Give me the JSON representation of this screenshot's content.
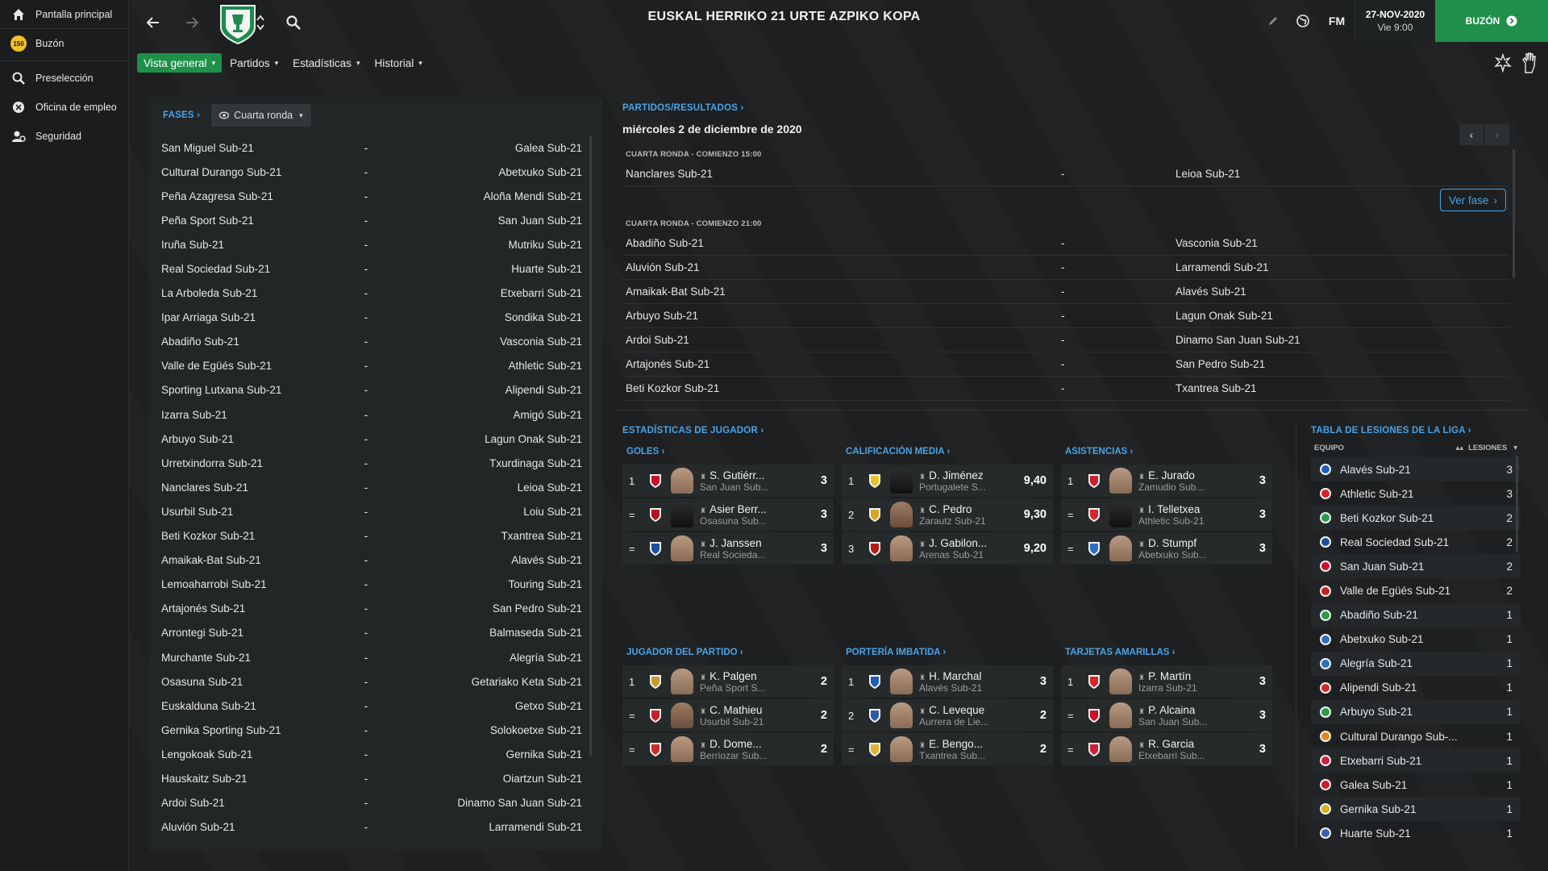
{
  "sidebar": {
    "items": [
      {
        "label": "Pantalla principal",
        "icon": "home-icon"
      },
      {
        "label": "Buzón",
        "icon": "inbox-badge-icon",
        "badge": "150"
      },
      {
        "label": "Preselección",
        "icon": "search-icon"
      },
      {
        "label": "Oficina de empleo",
        "icon": "job-office-icon"
      },
      {
        "label": "Seguridad",
        "icon": "security-icon"
      }
    ]
  },
  "header": {
    "title": "EUSKAL HERRIKO 21 URTE AZPIKO KOPA",
    "fm_label": "FM",
    "date": "27-NOV-2020",
    "day_time": "Vie 9:00",
    "inbox_button": "BUZÓN"
  },
  "tabs": [
    {
      "label": "Vista general",
      "active": true
    },
    {
      "label": "Partidos",
      "active": false
    },
    {
      "label": "Estadísticas",
      "active": false
    },
    {
      "label": "Historial",
      "active": false
    }
  ],
  "fases": {
    "link": "FASES",
    "dropdown": "Cuarta ronda",
    "fixtures": [
      {
        "home": "San Miguel Sub-21",
        "away": "Galea Sub-21"
      },
      {
        "home": "Cultural Durango Sub-21",
        "away": "Abetxuko Sub-21"
      },
      {
        "home": "Peña Azagresa Sub-21",
        "away": "Aloña Mendi Sub-21"
      },
      {
        "home": "Peña Sport  Sub-21",
        "away": "San Juan Sub-21"
      },
      {
        "home": "Iruña Sub-21",
        "away": "Mutriku Sub-21"
      },
      {
        "home": "Real Sociedad Sub-21",
        "away": "Huarte Sub-21"
      },
      {
        "home": "La Arboleda Sub-21",
        "away": "Etxebarri Sub-21"
      },
      {
        "home": "Ipar Arriaga Sub-21",
        "away": "Sondika Sub-21"
      },
      {
        "home": "Abadiño Sub-21",
        "away": "Vasconia Sub-21"
      },
      {
        "home": "Valle de Egüés Sub-21",
        "away": "Athletic Sub-21"
      },
      {
        "home": "Sporting Lutxana Sub-21",
        "away": "Alipendi Sub-21"
      },
      {
        "home": "Izarra Sub-21",
        "away": "Amigó Sub-21"
      },
      {
        "home": "Arbuyo Sub-21",
        "away": "Lagun Onak Sub-21"
      },
      {
        "home": "Urretxindorra Sub-21",
        "away": "Txurdinaga Sub-21"
      },
      {
        "home": "Nanclares Sub-21",
        "away": "Leioa Sub-21"
      },
      {
        "home": "Usurbil Sub-21",
        "away": "Loiu Sub-21"
      },
      {
        "home": "Beti Kozkor Sub-21",
        "away": "Txantrea Sub-21"
      },
      {
        "home": "Amaikak-Bat Sub-21",
        "away": "Alavés Sub-21"
      },
      {
        "home": "Lemoaharrobi Sub-21",
        "away": "Touring Sub-21"
      },
      {
        "home": "Artajonés Sub-21",
        "away": "San Pedro Sub-21"
      },
      {
        "home": "Arrontegi Sub-21",
        "away": "Balmaseda  Sub-21"
      },
      {
        "home": "Murchante  Sub-21",
        "away": "Alegría Sub-21"
      },
      {
        "home": "Osasuna Sub-21",
        "away": "Getariako Keta Sub-21"
      },
      {
        "home": "Euskalduna Sub-21",
        "away": "Getxo Sub-21"
      },
      {
        "home": "Gernika Sporting Sub-21",
        "away": "Solokoetxe Sub-21"
      },
      {
        "home": "Lengokoak Sub-21",
        "away": "Gernika Sub-21"
      },
      {
        "home": "Hauskaitz Sub-21",
        "away": "Oiartzun Sub-21"
      },
      {
        "home": "Ardoi Sub-21",
        "away": "Dinamo San Juan Sub-21"
      },
      {
        "home": "Aluvión Sub-21",
        "away": "Larramendi Sub-21"
      }
    ]
  },
  "matches": {
    "link": "PARTIDOS/RESULTADOS",
    "date": "miércoles 2 de diciembre de 2020",
    "ver_fase": "Ver fase",
    "group1_label": "CUARTA RONDA - COMIENZO 15:00",
    "group1": [
      {
        "home": "Nanclares Sub-21",
        "away": "Leioa Sub-21"
      }
    ],
    "group2_label": "CUARTA RONDA - COMIENZO 21:00",
    "group2": [
      {
        "home": "Abadiño Sub-21",
        "away": "Vasconia Sub-21"
      },
      {
        "home": "Aluvión Sub-21",
        "away": "Larramendi Sub-21"
      },
      {
        "home": "Amaikak-Bat Sub-21",
        "away": "Alavés Sub-21"
      },
      {
        "home": "Arbuyo Sub-21",
        "away": "Lagun Onak Sub-21"
      },
      {
        "home": "Ardoi Sub-21",
        "away": "Dinamo San Juan Sub-21"
      },
      {
        "home": "Artajonés Sub-21",
        "away": "San Pedro Sub-21"
      },
      {
        "home": "Beti Kozkor Sub-21",
        "away": "Txantrea Sub-21"
      }
    ]
  },
  "stats": {
    "link": "ESTADÍSTICAS DE JUGADOR",
    "blocks": [
      {
        "title": "GOLES",
        "rows": [
          {
            "rank": "1",
            "name": "S. Gutiérr...",
            "club": "San Juan Sub...",
            "value": "3",
            "badge": "#c8102e",
            "face": "light"
          },
          {
            "rank": "=",
            "name": "Asier Berr...",
            "club": "Osasuna Sub...",
            "value": "3",
            "badge": "#b5121b",
            "face": "dark"
          },
          {
            "rank": "=",
            "name": "J. Janssen",
            "club": "Real Socieda...",
            "value": "3",
            "badge": "#1c4f9c",
            "face": "light"
          }
        ]
      },
      {
        "title": "CALIFICACIÓN MEDIA",
        "rows": [
          {
            "rank": "1",
            "name": "D. Jiménez",
            "club": "Portugalete S...",
            "value": "9,40",
            "badge": "#e8c22a",
            "face": "dark"
          },
          {
            "rank": "2",
            "name": "C. Pedro",
            "club": "Zarautz Sub-21",
            "value": "9,30",
            "badge": "#d9a520",
            "face": "mid"
          },
          {
            "rank": "3",
            "name": "J. Gabilon...",
            "club": "Arenas Sub-21",
            "value": "9,20",
            "badge": "#b31b1b",
            "face": "light"
          }
        ]
      },
      {
        "title": "ASISTENCIAS",
        "rows": [
          {
            "rank": "1",
            "name": "E. Jurado",
            "club": "Zamudio Sub...",
            "value": "3",
            "badge": "#cc1f2f",
            "face": "light"
          },
          {
            "rank": "=",
            "name": "I. Telletxea",
            "club": "Athletic Sub-21",
            "value": "3",
            "badge": "#d4262b",
            "face": "dark"
          },
          {
            "rank": "=",
            "name": "D. Stumpf",
            "club": "Abetxuko Sub...",
            "value": "3",
            "badge": "#2f6fbf",
            "face": "light"
          }
        ]
      },
      {
        "title": "JUGADOR DEL PARTIDO",
        "rows": [
          {
            "rank": "1",
            "name": "K. Palgen",
            "club": "Peña Sport  S...",
            "value": "2",
            "badge": "#c99a2e",
            "face": "light"
          },
          {
            "rank": "=",
            "name": "C. Mathieu",
            "club": "Usurbil Sub-21",
            "value": "2",
            "badge": "#c8202a",
            "face": "mid"
          },
          {
            "rank": "=",
            "name": "D. Dome...",
            "club": "Berriozar Sub...",
            "value": "2",
            "badge": "#d02a2a",
            "face": "light"
          }
        ]
      },
      {
        "title": "PORTERÍA IMBATIDA",
        "rows": [
          {
            "rank": "1",
            "name": "H. Marchal",
            "club": "Alavés Sub-21",
            "value": "3",
            "badge": "#1d5fbf",
            "face": "light"
          },
          {
            "rank": "2",
            "name": "C. Leveque",
            "club": "Aurrera de Lie...",
            "value": "2",
            "badge": "#2a5ca8",
            "face": "light"
          },
          {
            "rank": "=",
            "name": "E. Bengo...",
            "club": "Txantrea Sub...",
            "value": "2",
            "badge": "#e0b030",
            "face": "light"
          }
        ]
      },
      {
        "title": "TARJETAS AMARILLAS",
        "rows": [
          {
            "rank": "1",
            "name": "P. Martín",
            "club": "Izarra Sub-21",
            "value": "3",
            "badge": "#d4262b",
            "face": "light"
          },
          {
            "rank": "=",
            "name": "P. Alcaina",
            "club": "San Juan Sub...",
            "value": "3",
            "badge": "#c8102e",
            "face": "light"
          },
          {
            "rank": "=",
            "name": "R. Garcia",
            "club": "Etxebarri Sub...",
            "value": "3",
            "badge": "#d0203a",
            "face": "light"
          }
        ]
      }
    ]
  },
  "injuries": {
    "link": "TABLA DE LESIONES DE LA LIGA",
    "col_team": "EQUIPO",
    "col_injuries": "LESIONES",
    "rows": [
      {
        "team": "Alavés Sub-21",
        "count": "3",
        "color": "#1d5fbf"
      },
      {
        "team": "Athletic Sub-21",
        "count": "3",
        "color": "#d4262b"
      },
      {
        "team": "Beti Kozkor Sub-21",
        "count": "2",
        "color": "#2a9a4a"
      },
      {
        "team": "Real Sociedad Sub-21",
        "count": "2",
        "color": "#1c4f9c"
      },
      {
        "team": "San Juan Sub-21",
        "count": "2",
        "color": "#c8102e"
      },
      {
        "team": "Valle de Egüés Sub-21",
        "count": "2",
        "color": "#c42020"
      },
      {
        "team": "Abadiño Sub-21",
        "count": "1",
        "color": "#2a9a4a"
      },
      {
        "team": "Abetxuko Sub-21",
        "count": "1",
        "color": "#2f6fbf"
      },
      {
        "team": "Alegría Sub-21",
        "count": "1",
        "color": "#2f6fbf"
      },
      {
        "team": "Alipendi Sub-21",
        "count": "1",
        "color": "#d02a2a"
      },
      {
        "team": "Arbuyo Sub-21",
        "count": "1",
        "color": "#2a9a4a"
      },
      {
        "team": "Cultural Durango Sub-...",
        "count": "1",
        "color": "#e08a20"
      },
      {
        "team": "Etxebarri Sub-21",
        "count": "1",
        "color": "#d0203a"
      },
      {
        "team": "Galea Sub-21",
        "count": "1",
        "color": "#c8202a"
      },
      {
        "team": "Gernika Sub-21",
        "count": "1",
        "color": "#d9b020"
      },
      {
        "team": "Huarte Sub-21",
        "count": "1",
        "color": "#3a5fb0"
      }
    ]
  },
  "colors": {
    "accent": "#1f8f4a",
    "link": "#4aa3e6"
  }
}
